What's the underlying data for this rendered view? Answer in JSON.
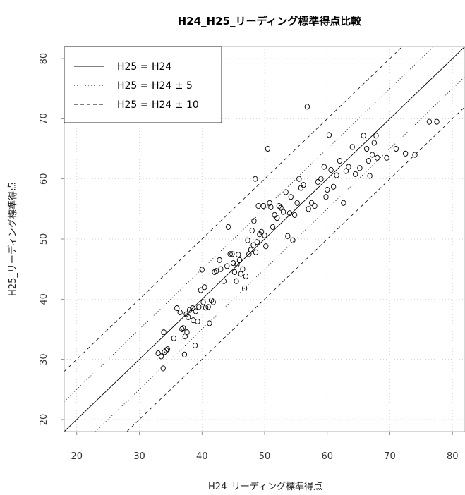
{
  "chart_data": {
    "type": "scatter",
    "title": "H24_H25_リーディング標準得点比較",
    "xlabel": "H24_リーディング標準得点",
    "ylabel": "H25_リーディング標準得点",
    "xlim": [
      18,
      82
    ],
    "ylim": [
      18,
      82
    ],
    "xticks": [
      20,
      30,
      40,
      50,
      60,
      70,
      80
    ],
    "yticks": [
      20,
      30,
      40,
      50,
      60,
      70,
      80
    ],
    "grid": true,
    "legend_position": "top-left",
    "legend": [
      {
        "label": "H25 = H24",
        "style": "solid"
      },
      {
        "label": "H25 = H24 ± 5",
        "style": "dotted"
      },
      {
        "label": "H25 = H24 ± 10",
        "style": "dashed"
      }
    ],
    "reference_lines": [
      {
        "offset": 0,
        "style": "solid"
      },
      {
        "offset": 5,
        "style": "dotted"
      },
      {
        "offset": -5,
        "style": "dotted"
      },
      {
        "offset": 10,
        "style": "dashed"
      },
      {
        "offset": -10,
        "style": "dashed"
      }
    ],
    "points": [
      [
        33.0,
        31.0
      ],
      [
        33.5,
        30.5
      ],
      [
        33.8,
        28.5
      ],
      [
        34.0,
        31.2
      ],
      [
        34.3,
        31.5
      ],
      [
        34.5,
        31.7
      ],
      [
        33.9,
        34.5
      ],
      [
        35.5,
        33.5
      ],
      [
        36.0,
        38.5
      ],
      [
        36.5,
        37.8
      ],
      [
        36.8,
        35.0
      ],
      [
        37.0,
        35.2
      ],
      [
        37.2,
        30.8
      ],
      [
        37.3,
        33.8
      ],
      [
        37.5,
        37.5
      ],
      [
        37.6,
        34.5
      ],
      [
        37.8,
        37.0
      ],
      [
        38.0,
        38.2
      ],
      [
        38.5,
        38.5
      ],
      [
        38.6,
        36.5
      ],
      [
        38.9,
        32.3
      ],
      [
        39.0,
        38.0
      ],
      [
        39.3,
        36.3
      ],
      [
        39.5,
        38.7
      ],
      [
        39.8,
        41.5
      ],
      [
        40.0,
        44.9
      ],
      [
        40.2,
        39.5
      ],
      [
        40.4,
        42.0
      ],
      [
        40.6,
        38.6
      ],
      [
        41.0,
        38.7
      ],
      [
        41.2,
        36.0
      ],
      [
        41.5,
        39.8
      ],
      [
        41.8,
        39.5
      ],
      [
        42.0,
        44.5
      ],
      [
        42.3,
        44.7
      ],
      [
        42.8,
        46.5
      ],
      [
        43.0,
        45.0
      ],
      [
        43.5,
        43.0
      ],
      [
        44.0,
        45.5
      ],
      [
        44.2,
        52.0
      ],
      [
        44.5,
        47.5
      ],
      [
        44.8,
        47.5
      ],
      [
        45.0,
        46.0
      ],
      [
        45.2,
        44.5
      ],
      [
        45.5,
        43.0
      ],
      [
        45.6,
        45.8
      ],
      [
        45.8,
        47.4
      ],
      [
        46.0,
        46.5
      ],
      [
        46.2,
        44.2
      ],
      [
        46.5,
        45.0
      ],
      [
        46.8,
        41.8
      ],
      [
        47.0,
        43.8
      ],
      [
        47.3,
        49.8
      ],
      [
        47.5,
        47.5
      ],
      [
        47.8,
        48.2
      ],
      [
        48.0,
        51.4
      ],
      [
        48.2,
        49.0
      ],
      [
        48.3,
        53.0
      ],
      [
        48.5,
        60.0
      ],
      [
        48.6,
        47.8
      ],
      [
        48.8,
        49.5
      ],
      [
        49.0,
        55.5
      ],
      [
        49.2,
        50.8
      ],
      [
        49.5,
        51.2
      ],
      [
        49.8,
        55.5
      ],
      [
        50.0,
        50.6
      ],
      [
        50.2,
        48.8
      ],
      [
        50.5,
        65.0
      ],
      [
        50.8,
        56.0
      ],
      [
        51.0,
        55.3
      ],
      [
        51.3,
        52.0
      ],
      [
        51.6,
        54.0
      ],
      [
        52.0,
        53.5
      ],
      [
        52.3,
        55.5
      ],
      [
        52.6,
        55.2
      ],
      [
        53.0,
        54.5
      ],
      [
        53.4,
        57.8
      ],
      [
        53.7,
        50.5
      ],
      [
        54.0,
        54.3
      ],
      [
        54.2,
        57.0
      ],
      [
        54.5,
        49.8
      ],
      [
        54.8,
        54.0
      ],
      [
        55.2,
        56.0
      ],
      [
        55.5,
        60.0
      ],
      [
        55.8,
        58.5
      ],
      [
        56.2,
        59.0
      ],
      [
        56.8,
        72.0
      ],
      [
        57.0,
        55.0
      ],
      [
        57.5,
        56.0
      ],
      [
        58.0,
        55.5
      ],
      [
        58.5,
        59.5
      ],
      [
        59.0,
        60.0
      ],
      [
        59.5,
        62.0
      ],
      [
        59.8,
        57.0
      ],
      [
        60.0,
        58.2
      ],
      [
        60.3,
        67.3
      ],
      [
        60.6,
        61.5
      ],
      [
        61.0,
        58.7
      ],
      [
        61.5,
        60.6
      ],
      [
        62.0,
        63.0
      ],
      [
        62.6,
        56.0
      ],
      [
        63.0,
        61.3
      ],
      [
        63.4,
        62.0
      ],
      [
        64.0,
        65.3
      ],
      [
        64.5,
        60.8
      ],
      [
        65.2,
        61.8
      ],
      [
        65.8,
        67.2
      ],
      [
        66.3,
        65.0
      ],
      [
        66.6,
        63.0
      ],
      [
        66.8,
        60.5
      ],
      [
        67.2,
        64.0
      ],
      [
        67.5,
        66.0
      ],
      [
        67.8,
        67.2
      ],
      [
        68.0,
        63.5
      ],
      [
        69.5,
        63.5
      ],
      [
        71.0,
        65.0
      ],
      [
        72.5,
        64.2
      ],
      [
        74.0,
        64.0
      ],
      [
        76.3,
        69.5
      ],
      [
        77.5,
        69.5
      ]
    ]
  }
}
